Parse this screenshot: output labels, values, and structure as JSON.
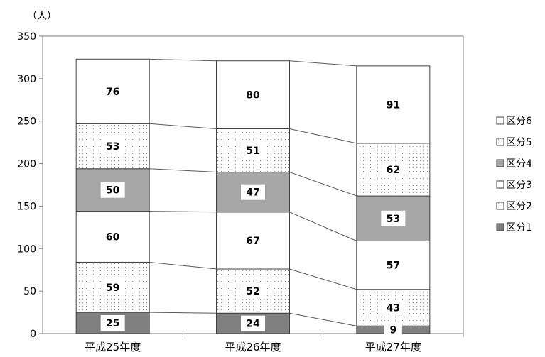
{
  "chart_data": {
    "type": "bar",
    "stacked": true,
    "unit_label": "（人）",
    "categories": [
      "平成25年度",
      "平成26年度",
      "平成27年度"
    ],
    "ylim": [
      0,
      350
    ],
    "yticks": [
      "0",
      "50",
      "100",
      "150",
      "200",
      "250",
      "300",
      "350"
    ],
    "grid": false,
    "legend_position": "right",
    "series": [
      {
        "name": "区分1",
        "values": [
          25,
          24,
          9
        ],
        "pattern": "solid",
        "color": "#808080"
      },
      {
        "name": "区分2",
        "values": [
          59,
          52,
          43
        ],
        "pattern": "dots",
        "color": "#ffffff"
      },
      {
        "name": "区分3",
        "values": [
          60,
          67,
          57
        ],
        "pattern": "solid",
        "color": "#ffffff"
      },
      {
        "name": "区分4",
        "values": [
          50,
          47,
          53
        ],
        "pattern": "solid",
        "color": "#a6a6a6"
      },
      {
        "name": "区分5",
        "values": [
          53,
          51,
          62
        ],
        "pattern": "dots",
        "color": "#ffffff"
      },
      {
        "name": "区分6",
        "values": [
          76,
          80,
          91
        ],
        "pattern": "solid",
        "color": "#ffffff"
      }
    ]
  }
}
